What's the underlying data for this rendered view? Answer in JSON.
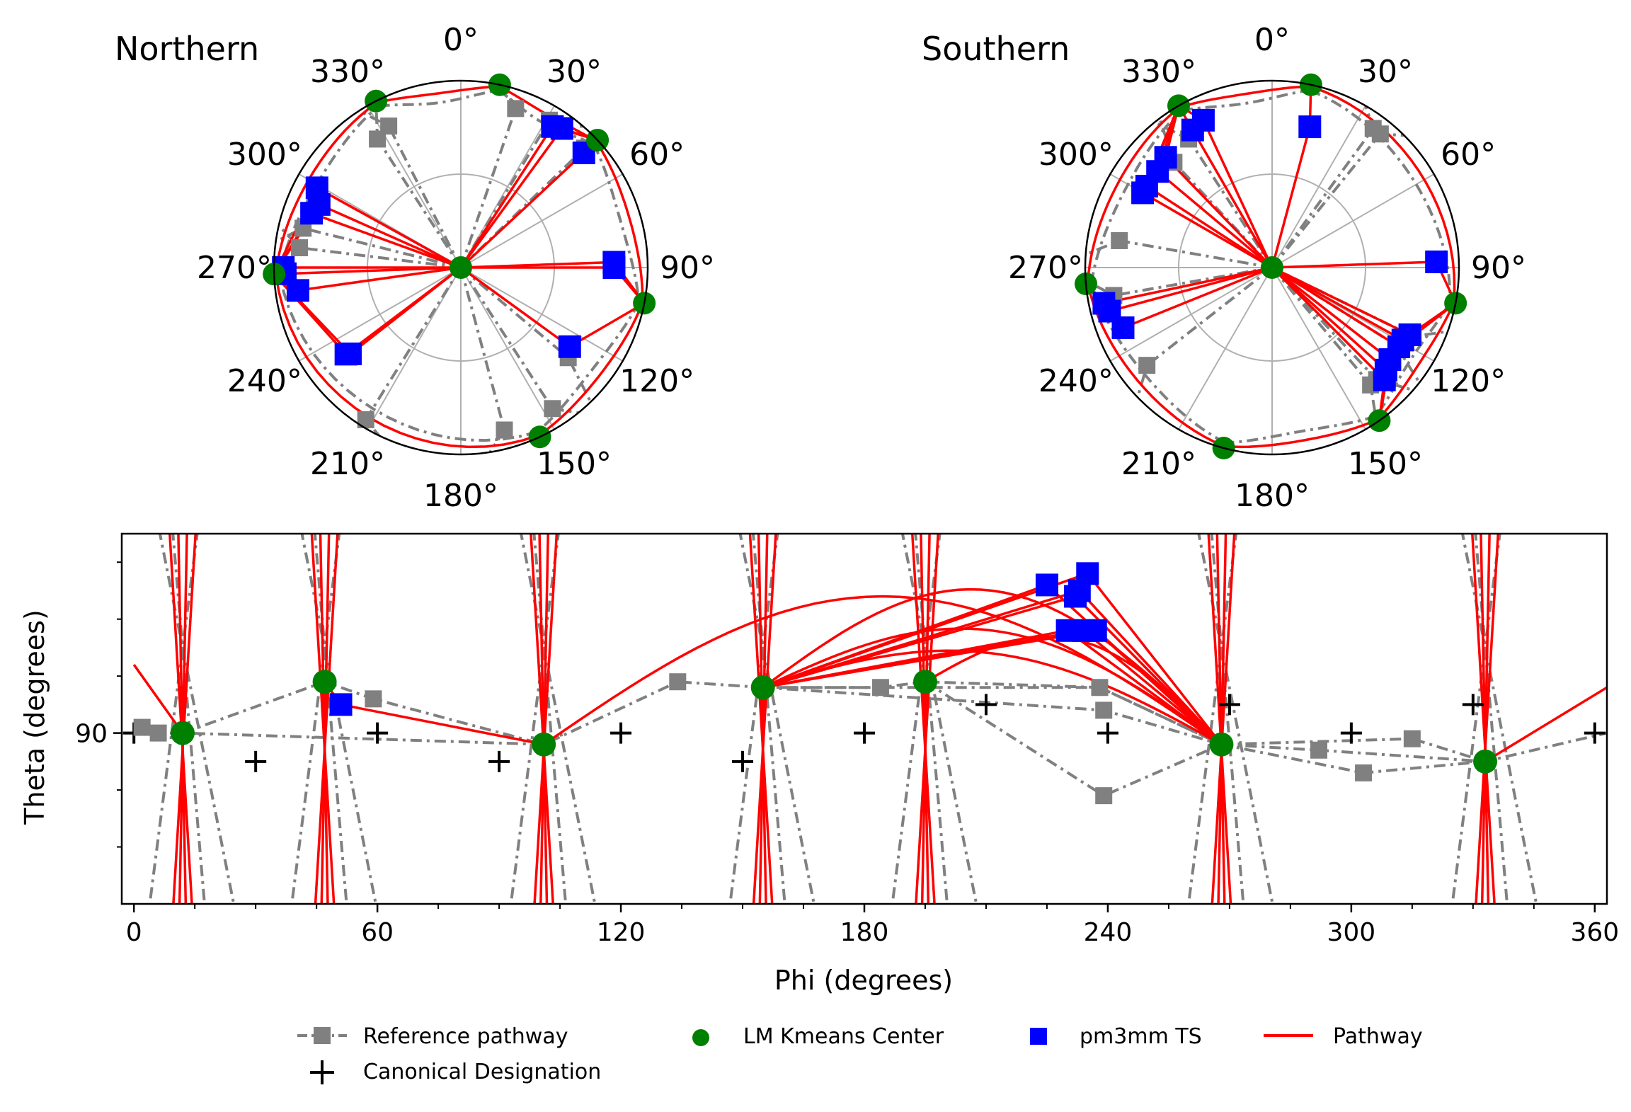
{
  "colors": {
    "reference": "#808080",
    "center": "#008000",
    "ts": "#0000ff",
    "pathway": "#ff0000",
    "canonical": "#000000",
    "grid": "#b0b0b0"
  },
  "chart_data": [
    {
      "type": "scatter",
      "projection": "polar",
      "title": "Northern",
      "angle_ticks": [
        "0°",
        "30°",
        "60°",
        "90°",
        "120°",
        "150°",
        "180°",
        "210°",
        "240°",
        "270°",
        "300°",
        "330°"
      ],
      "direction": "clockwise",
      "zero_location": "top",
      "center": {
        "phi": 0,
        "r": 0
      },
      "lm_centers": [
        {
          "phi": 12,
          "r": 1.0
        },
        {
          "phi": 47,
          "r": 1.0
        },
        {
          "phi": 101,
          "r": 1.0
        },
        {
          "phi": 155,
          "r": 1.0
        },
        {
          "phi": 268,
          "r": 1.0
        },
        {
          "phi": 333,
          "r": 1.0
        }
      ],
      "ts_points": [
        {
          "phi": 33,
          "r": 0.9
        },
        {
          "phi": 36,
          "r": 0.92
        },
        {
          "phi": 47,
          "r": 0.9
        },
        {
          "phi": 88,
          "r": 0.82
        },
        {
          "phi": 90,
          "r": 0.82
        },
        {
          "phi": 126,
          "r": 0.72
        },
        {
          "phi": 232,
          "r": 0.75
        },
        {
          "phi": 233,
          "r": 0.77
        },
        {
          "phi": 262,
          "r": 0.88
        },
        {
          "phi": 268,
          "r": 0.94
        },
        {
          "phi": 270,
          "r": 0.95
        },
        {
          "phi": 290,
          "r": 0.85
        },
        {
          "phi": 294,
          "r": 0.83
        },
        {
          "phi": 299,
          "r": 0.88
        }
      ],
      "reference_points": [
        {
          "phi": 19,
          "r": 0.9
        },
        {
          "phi": 31,
          "r": 0.92
        },
        {
          "phi": 46,
          "r": 0.92
        },
        {
          "phi": 130,
          "r": 0.75
        },
        {
          "phi": 147,
          "r": 0.9
        },
        {
          "phi": 165,
          "r": 0.9
        },
        {
          "phi": 212,
          "r": 0.96
        },
        {
          "phi": 277,
          "r": 0.87
        },
        {
          "phi": 284,
          "r": 0.87
        },
        {
          "phi": 327,
          "r": 0.82
        },
        {
          "phi": 333,
          "r": 0.85
        }
      ]
    },
    {
      "type": "scatter",
      "projection": "polar",
      "title": "Southern",
      "angle_ticks": [
        "0°",
        "30°",
        "60°",
        "90°",
        "120°",
        "150°",
        "180°",
        "210°",
        "240°",
        "270°",
        "300°",
        "330°"
      ],
      "direction": "clockwise",
      "zero_location": "top",
      "center": {
        "phi": 0,
        "r": 0
      },
      "lm_centers": [
        {
          "phi": 12,
          "r": 1.0
        },
        {
          "phi": 101,
          "r": 1.0
        },
        {
          "phi": 145,
          "r": 1.0
        },
        {
          "phi": 195,
          "r": 1.0
        },
        {
          "phi": 265,
          "r": 1.0
        },
        {
          "phi": 330,
          "r": 1.0
        }
      ],
      "ts_points": [
        {
          "phi": 15,
          "r": 0.78
        },
        {
          "phi": 88,
          "r": 0.88
        },
        {
          "phi": 116,
          "r": 0.82
        },
        {
          "phi": 119,
          "r": 0.8
        },
        {
          "phi": 122,
          "r": 0.8
        },
        {
          "phi": 128,
          "r": 0.8
        },
        {
          "phi": 132,
          "r": 0.82
        },
        {
          "phi": 135,
          "r": 0.85
        },
        {
          "phi": 258,
          "r": 0.92
        },
        {
          "phi": 255,
          "r": 0.9
        },
        {
          "phi": 248,
          "r": 0.86
        },
        {
          "phi": 300,
          "r": 0.8
        },
        {
          "phi": 303,
          "r": 0.8
        },
        {
          "phi": 310,
          "r": 0.8
        },
        {
          "phi": 316,
          "r": 0.82
        },
        {
          "phi": 330,
          "r": 0.85
        },
        {
          "phi": 335,
          "r": 0.87
        }
      ],
      "reference_points": [
        {
          "phi": 36,
          "r": 0.92
        },
        {
          "phi": 39,
          "r": 0.92
        },
        {
          "phi": 116,
          "r": 0.84
        },
        {
          "phi": 122,
          "r": 0.78
        },
        {
          "phi": 137,
          "r": 0.82
        },
        {
          "phi": 140,
          "r": 0.82
        },
        {
          "phi": 232,
          "r": 0.85
        },
        {
          "phi": 260,
          "r": 0.86
        },
        {
          "phi": 280,
          "r": 0.83
        },
        {
          "phi": 317,
          "r": 0.77
        },
        {
          "phi": 327,
          "r": 0.82
        }
      ]
    },
    {
      "type": "scatter",
      "title": "",
      "xlabel": "Phi (degrees)",
      "ylabel": "Theta (degrees)",
      "xlim": [
        -3,
        363
      ],
      "ylim": [
        60,
        125
      ],
      "xticks": [
        "0",
        "60",
        "120",
        "180",
        "240",
        "300",
        "360"
      ],
      "yticks": [
        "90"
      ],
      "lm_centers": [
        {
          "x": 12,
          "y": 90
        },
        {
          "x": 47,
          "y": 99
        },
        {
          "x": 101,
          "y": 88
        },
        {
          "x": 155,
          "y": 98
        },
        {
          "x": 195,
          "y": 99
        },
        {
          "x": 268,
          "y": 88
        },
        {
          "x": 333,
          "y": 85
        }
      ],
      "ts_points": [
        {
          "x": 51,
          "y": 95
        },
        {
          "x": 225,
          "y": 116
        },
        {
          "x": 232,
          "y": 114
        },
        {
          "x": 233,
          "y": 115
        },
        {
          "x": 235,
          "y": 118
        },
        {
          "x": 230,
          "y": 108
        },
        {
          "x": 234,
          "y": 108
        },
        {
          "x": 237,
          "y": 108
        }
      ],
      "reference_points": [
        {
          "x": 2,
          "y": 91
        },
        {
          "x": 6,
          "y": 90
        },
        {
          "x": 59,
          "y": 96
        },
        {
          "x": 134,
          "y": 99
        },
        {
          "x": 184,
          "y": 98
        },
        {
          "x": 238,
          "y": 98
        },
        {
          "x": 239,
          "y": 94
        },
        {
          "x": 239,
          "y": 79
        },
        {
          "x": 292,
          "y": 87
        },
        {
          "x": 303,
          "y": 83
        },
        {
          "x": 315,
          "y": 89
        }
      ],
      "canonical": [
        {
          "x": 0,
          "y": 90
        },
        {
          "x": 30,
          "y": 85
        },
        {
          "x": 60,
          "y": 90
        },
        {
          "x": 90,
          "y": 85
        },
        {
          "x": 120,
          "y": 90
        },
        {
          "x": 150,
          "y": 85
        },
        {
          "x": 180,
          "y": 90
        },
        {
          "x": 210,
          "y": 95
        },
        {
          "x": 240,
          "y": 90
        },
        {
          "x": 270,
          "y": 95
        },
        {
          "x": 300,
          "y": 90
        },
        {
          "x": 330,
          "y": 95
        },
        {
          "x": 360,
          "y": 90
        }
      ]
    }
  ],
  "legend": {
    "placement": "bottom",
    "items": [
      {
        "label": "Reference pathway",
        "kind": "reference"
      },
      {
        "label": "LM Kmeans Center",
        "kind": "center"
      },
      {
        "label": "pm3mm TS",
        "kind": "ts"
      },
      {
        "label": "Pathway",
        "kind": "pathway"
      },
      {
        "label": "Canonical Designation",
        "kind": "canonical"
      }
    ]
  }
}
